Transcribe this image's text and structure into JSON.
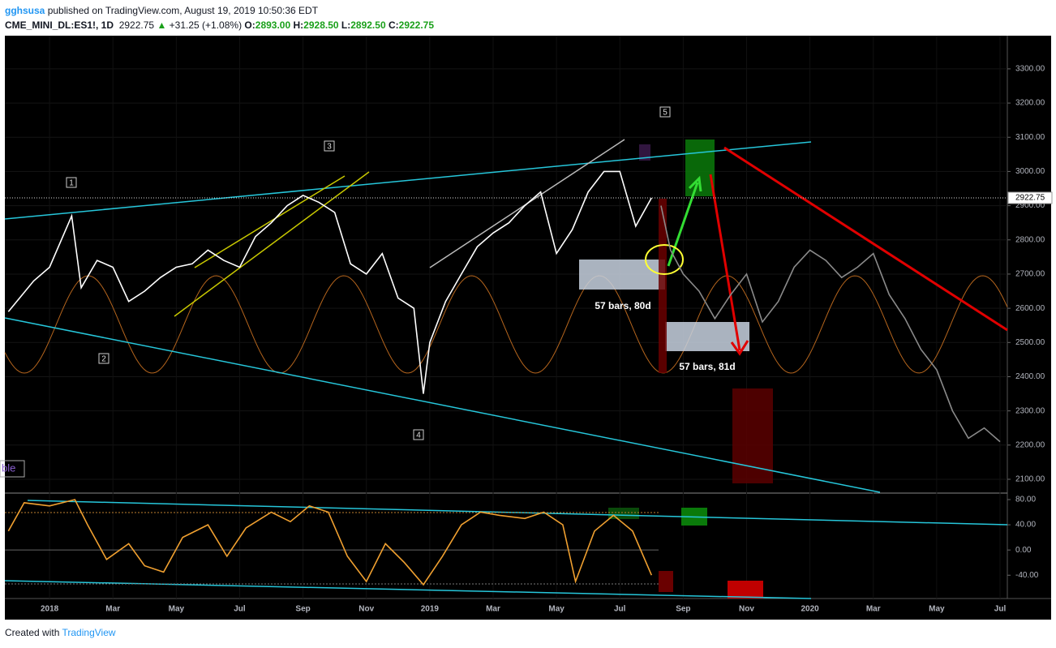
{
  "header": {
    "author": "gghsusa",
    "published": "published on TradingView.com, August 19, 2019 10:50:36 EDT",
    "symbol": "CME_MINI_DL:ES1!, 1D",
    "last": "2922.75",
    "arrow": "▲",
    "change": "+31.25 (+1.08%)",
    "o_label": "O:",
    "open": "2893.00",
    "h_label": "H:",
    "high": "2928.50",
    "l_label": "L:",
    "low": "2892.50",
    "c_label": "C:",
    "close": "2922.75"
  },
  "footer": {
    "text": "Created with",
    "brand": "TradingView"
  },
  "annotations": {
    "wave_labels": [
      "1",
      "2",
      "3",
      "4",
      "5"
    ],
    "boxes": [
      "57 bars, 80d",
      "57 bars, 81d"
    ],
    "cut_label": "ble",
    "last_price_label": "2922.75"
  },
  "chart_data": [
    {
      "type": "line",
      "xlim": [
        -1.41,
        30.23
      ],
      "ylim": [
        2062,
        3397
      ],
      "xticks": [
        {
          "value": 0,
          "label": "2018"
        },
        {
          "value": 2,
          "label": "Mar"
        },
        {
          "value": 4,
          "label": "May"
        },
        {
          "value": 6,
          "label": "Jul"
        },
        {
          "value": 8,
          "label": "Sep"
        },
        {
          "value": 10,
          "label": "Nov"
        },
        {
          "value": 12,
          "label": "2019"
        },
        {
          "value": 14,
          "label": "Mar"
        },
        {
          "value": 16,
          "label": "May"
        },
        {
          "value": 18,
          "label": "Jul"
        },
        {
          "value": 20,
          "label": "Sep"
        },
        {
          "value": 22,
          "label": "Nov"
        },
        {
          "value": 24,
          "label": "2020"
        },
        {
          "value": 26,
          "label": "Mar"
        },
        {
          "value": 28,
          "label": "May"
        },
        {
          "value": 30,
          "label": "Jul"
        }
      ],
      "yticks": [
        {
          "value": 2100,
          "label": "2100.00"
        },
        {
          "value": 2200,
          "label": "2200.00"
        },
        {
          "value": 2300,
          "label": "2300.00"
        },
        {
          "value": 2400,
          "label": "2400.00"
        },
        {
          "value": 2500,
          "label": "2500.00"
        },
        {
          "value": 2600,
          "label": "2600.00"
        },
        {
          "value": 2700,
          "label": "2700.00"
        },
        {
          "value": 2800,
          "label": "2800.00"
        },
        {
          "value": 2900,
          "label": "2900.00"
        },
        {
          "value": 3000,
          "label": "3000.00"
        },
        {
          "value": 3100,
          "label": "3100.00"
        },
        {
          "value": 3200,
          "label": "3200.00"
        },
        {
          "value": 3300,
          "label": "3300.00"
        }
      ],
      "last_value": 2922.75,
      "series": [
        {
          "color": "#ffffff",
          "x": [
            -1.3,
            -0.5,
            0,
            0.7,
            1.0,
            1.5,
            2.0,
            2.5,
            3.0,
            3.5,
            4.0,
            4.5,
            5.0,
            5.5,
            6.0,
            6.5,
            7.0,
            7.5,
            8.0,
            8.5,
            9.0,
            9.5,
            10.0,
            10.5,
            11.0,
            11.5,
            11.8,
            12.0,
            12.5,
            13.0,
            13.5,
            14.0,
            14.5,
            15.0,
            15.5,
            16.0,
            16.5,
            17.0,
            17.5,
            18.0,
            18.5,
            19.0
          ],
          "values": [
            2590,
            2680,
            2720,
            2870,
            2660,
            2740,
            2720,
            2620,
            2650,
            2690,
            2720,
            2730,
            2770,
            2740,
            2720,
            2810,
            2850,
            2900,
            2930,
            2910,
            2880,
            2730,
            2700,
            2760,
            2630,
            2600,
            2350,
            2500,
            2620,
            2700,
            2780,
            2820,
            2850,
            2900,
            2940,
            2760,
            2830,
            2940,
            3000,
            3000,
            2840,
            2922.75
          ]
        },
        {
          "color": "#8a8a8a",
          "x": [
            19.3,
            19.6,
            20,
            20.5,
            21,
            21.5,
            22,
            22.5,
            23,
            23.5,
            24,
            24.5,
            25,
            25.5,
            26,
            26.5,
            27,
            27.5,
            28,
            28.5,
            29,
            29.5,
            30
          ],
          "values": [
            2900,
            2770,
            2700,
            2650,
            2570,
            2640,
            2700,
            2560,
            2620,
            2720,
            2770,
            2740,
            2690,
            2720,
            2760,
            2640,
            2570,
            2480,
            2420,
            2300,
            2220,
            2250,
            2210
          ]
        }
      ]
    },
    {
      "type": "line",
      "ylim": [
        -77,
        89
      ],
      "yticks": [
        {
          "value": 80,
          "label": "80.00"
        },
        {
          "value": 40,
          "label": "40.00"
        },
        {
          "value": 0,
          "label": "0.00"
        },
        {
          "value": -40,
          "label": "-40.00"
        }
      ],
      "series": [
        {
          "color": "#f0a030",
          "x": [
            -1.3,
            -0.8,
            0,
            0.8,
            1.2,
            1.8,
            2.5,
            3.0,
            3.6,
            4.2,
            5.0,
            5.6,
            6.2,
            7.0,
            7.6,
            8.2,
            8.8,
            9.4,
            10.0,
            10.6,
            11.2,
            11.8,
            12.4,
            13.0,
            13.6,
            14.2,
            15.0,
            15.6,
            16.2,
            16.6,
            17.2,
            17.8,
            18.4,
            19.0
          ],
          "values": [
            30,
            75,
            70,
            80,
            40,
            -15,
            10,
            -25,
            -35,
            20,
            40,
            -10,
            35,
            60,
            45,
            70,
            60,
            -10,
            -50,
            10,
            -20,
            -55,
            -10,
            40,
            60,
            55,
            50,
            60,
            40,
            -50,
            30,
            55,
            30,
            -40
          ]
        }
      ]
    }
  ]
}
